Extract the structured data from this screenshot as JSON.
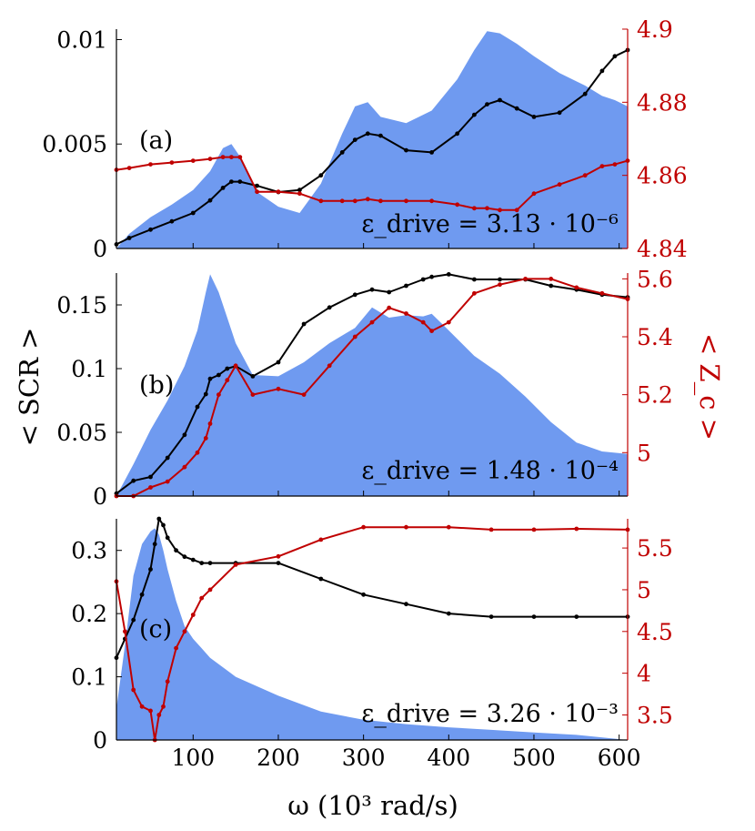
{
  "figure": {
    "xlabel": "ω (10³ rad/s)",
    "ylabel_left": "< SCR >",
    "ylabel_right": "< Z_c >",
    "colors": {
      "fill": "#6f9af0",
      "scr": "#000000",
      "zc": "#c00000",
      "right_axis": "#c00000"
    }
  },
  "chart_data": [
    {
      "type": "line",
      "panel": "(a)",
      "annotation": "ε_drive = 3.13 · 10⁻⁶",
      "x": [
        10,
        25,
        50,
        75,
        100,
        120,
        135,
        145,
        155,
        175,
        200,
        225,
        250,
        275,
        290,
        305,
        320,
        350,
        380,
        410,
        430,
        445,
        460,
        480,
        500,
        530,
        560,
        580,
        595,
        610
      ],
      "ylim_left": [
        0,
        0.0105
      ],
      "ylim_right": [
        4.84,
        4.9
      ],
      "xlim": [
        10,
        610
      ],
      "xticks": [
        100,
        200,
        300,
        400,
        500,
        600
      ],
      "yticks_left": [
        0,
        0.005,
        0.01
      ],
      "ytick_labels_left": [
        "0",
        "0.005",
        "0.01"
      ],
      "yticks_right": [
        4.84,
        4.86,
        4.88,
        4.9
      ],
      "ytick_labels_right": [
        "4.84",
        "4.86",
        "4.88",
        "4.9"
      ],
      "series": [
        {
          "name": "spectrum (area)",
          "style": "area",
          "axis": "left",
          "values": [
            0,
            0.0007,
            0.0015,
            0.0021,
            0.0028,
            0.0037,
            0.0048,
            0.005,
            0.0044,
            0.0027,
            0.002,
            0.0017,
            0.0031,
            0.0055,
            0.0068,
            0.007,
            0.0063,
            0.006,
            0.0066,
            0.0081,
            0.0095,
            0.0104,
            0.0103,
            0.0098,
            0.0092,
            0.0084,
            0.0078,
            0.0073,
            0.0071,
            0.0068
          ]
        },
        {
          "name": "< SCR >",
          "style": "line",
          "axis": "left",
          "values": [
            0.0002,
            0.0005,
            0.0009,
            0.0013,
            0.0017,
            0.0023,
            0.0029,
            0.0032,
            0.0032,
            0.003,
            0.0027,
            0.0028,
            0.0035,
            0.0046,
            0.0052,
            0.0055,
            0.0054,
            0.0047,
            0.0046,
            0.0055,
            0.0064,
            0.0069,
            0.0071,
            0.0067,
            0.0063,
            0.0065,
            0.0074,
            0.0085,
            0.0092,
            0.0095
          ]
        },
        {
          "name": "< Z_c >",
          "style": "line",
          "axis": "right",
          "values": [
            4.8615,
            4.862,
            4.863,
            4.8635,
            4.864,
            4.8645,
            4.865,
            4.865,
            4.865,
            4.8555,
            4.8555,
            4.855,
            4.853,
            4.853,
            4.853,
            4.8535,
            4.853,
            4.853,
            4.853,
            4.852,
            4.851,
            4.851,
            4.8505,
            4.8505,
            4.855,
            4.8575,
            4.86,
            4.8625,
            4.863,
            4.864
          ]
        }
      ]
    },
    {
      "type": "line",
      "panel": "(b)",
      "annotation": "ε_drive = 1.48 · 10⁻⁴",
      "x": [
        10,
        30,
        50,
        70,
        90,
        105,
        115,
        120,
        130,
        140,
        150,
        170,
        200,
        230,
        260,
        290,
        310,
        330,
        350,
        370,
        380,
        400,
        430,
        460,
        490,
        520,
        550,
        580,
        610
      ],
      "ylim_left": [
        0,
        0.175
      ],
      "ylim_right": [
        4.85,
        5.62
      ],
      "xlim": [
        10,
        610
      ],
      "xticks": [
        100,
        200,
        300,
        400,
        500,
        600
      ],
      "yticks_left": [
        0,
        0.05,
        0.1,
        0.15
      ],
      "ytick_labels_left": [
        "0",
        "0.05",
        "0.1",
        "0.15"
      ],
      "yticks_right": [
        5,
        5.2,
        5.4,
        5.6
      ],
      "ytick_labels_right": [
        "5",
        "5.2",
        "5.4",
        "5.6"
      ],
      "series": [
        {
          "name": "spectrum (area)",
          "style": "area",
          "axis": "left",
          "values": [
            0,
            0.025,
            0.052,
            0.075,
            0.102,
            0.13,
            0.16,
            0.174,
            0.16,
            0.14,
            0.12,
            0.095,
            0.094,
            0.105,
            0.12,
            0.132,
            0.148,
            0.14,
            0.142,
            0.141,
            0.143,
            0.13,
            0.11,
            0.096,
            0.078,
            0.058,
            0.042,
            0.035,
            0.033
          ]
        },
        {
          "name": "< SCR >",
          "style": "line",
          "axis": "left",
          "values": [
            0.002,
            0.012,
            0.015,
            0.03,
            0.048,
            0.07,
            0.08,
            0.092,
            0.095,
            0.1,
            0.102,
            0.094,
            0.105,
            0.135,
            0.148,
            0.158,
            0.162,
            0.16,
            0.165,
            0.17,
            0.172,
            0.174,
            0.17,
            0.17,
            0.17,
            0.165,
            0.162,
            0.158,
            0.156
          ]
        },
        {
          "name": "< Z_c >",
          "style": "line",
          "axis": "right",
          "values": [
            4.85,
            4.85,
            4.88,
            4.9,
            4.95,
            5.0,
            5.05,
            5.1,
            5.2,
            5.25,
            5.3,
            5.2,
            5.22,
            5.2,
            5.3,
            5.4,
            5.45,
            5.5,
            5.48,
            5.45,
            5.42,
            5.45,
            5.55,
            5.58,
            5.6,
            5.6,
            5.57,
            5.55,
            5.53
          ]
        }
      ]
    },
    {
      "type": "line",
      "panel": "(c)",
      "annotation": "ε_drive = 3.26 · 10⁻³",
      "x": [
        10,
        20,
        30,
        40,
        50,
        55,
        60,
        65,
        70,
        80,
        90,
        100,
        110,
        120,
        150,
        200,
        250,
        300,
        350,
        400,
        450,
        500,
        550,
        610
      ],
      "ylim_left": [
        0,
        0.35
      ],
      "ylim_right": [
        3.2,
        5.85
      ],
      "xlim": [
        10,
        610
      ],
      "xticks": [
        100,
        200,
        300,
        400,
        500,
        600
      ],
      "yticks_left": [
        0,
        0.1,
        0.2,
        0.3
      ],
      "ytick_labels_left": [
        "0",
        "0.1",
        "0.2",
        "0.3"
      ],
      "yticks_right": [
        3.5,
        4,
        4.5,
        5,
        5.5
      ],
      "ytick_labels_right": [
        "3.5",
        "4",
        "4.5",
        "5",
        "5.5"
      ],
      "series": [
        {
          "name": "spectrum (area)",
          "style": "area",
          "axis": "left",
          "values": [
            0.05,
            0.15,
            0.26,
            0.31,
            0.33,
            0.335,
            0.325,
            0.3,
            0.27,
            0.22,
            0.18,
            0.16,
            0.145,
            0.13,
            0.1,
            0.07,
            0.045,
            0.032,
            0.025,
            0.02,
            0.016,
            0.012,
            0.008,
            0.0
          ]
        },
        {
          "name": "< SCR >",
          "style": "line",
          "axis": "left",
          "values": [
            0.13,
            0.16,
            0.19,
            0.23,
            0.27,
            0.31,
            0.35,
            0.34,
            0.32,
            0.3,
            0.29,
            0.285,
            0.28,
            0.28,
            0.28,
            0.28,
            0.255,
            0.23,
            0.215,
            0.2,
            0.195,
            0.195,
            0.195,
            0.195
          ]
        },
        {
          "name": "< Z_c >",
          "style": "line",
          "axis": "right",
          "values": [
            5.1,
            4.5,
            3.8,
            3.6,
            3.55,
            3.2,
            3.5,
            3.6,
            3.9,
            4.3,
            4.5,
            4.7,
            4.9,
            5.0,
            5.3,
            5.4,
            5.6,
            5.75,
            5.75,
            5.75,
            5.72,
            5.72,
            5.73,
            5.72
          ]
        }
      ]
    }
  ]
}
